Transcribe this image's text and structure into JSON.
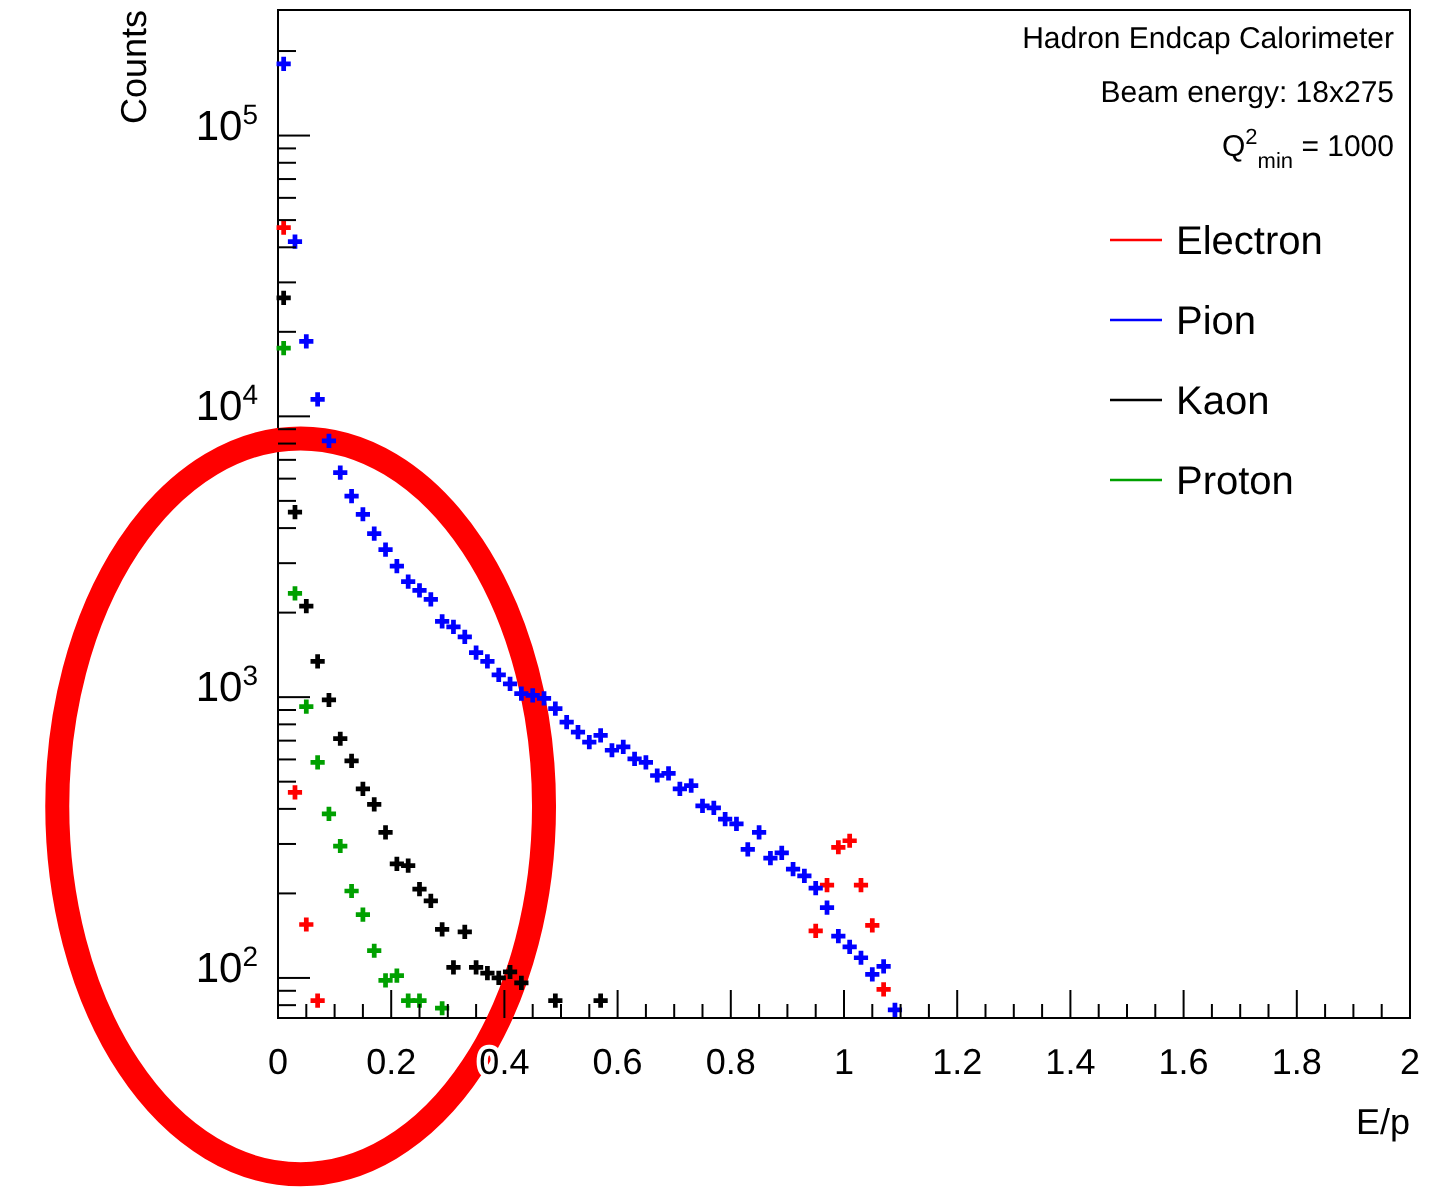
{
  "chart_data": {
    "type": "scatter",
    "xlabel": "E/p",
    "ylabel": "Counts",
    "log": "y",
    "xlim": [
      0,
      2
    ],
    "ylim": [
      72,
      280000
    ],
    "marker": "cross",
    "xticks": [
      0,
      {
        "value": 0.05,
        "label": null
      },
      {
        "value": 0.1,
        "label": null
      },
      {
        "value": 0.15,
        "label": null
      },
      0.2,
      {
        "value": 0.25,
        "label": null
      },
      {
        "value": 0.3,
        "label": null
      },
      {
        "value": 0.35,
        "label": null
      },
      0.4,
      {
        "value": 0.45,
        "label": null
      },
      {
        "value": 0.5,
        "label": null
      },
      {
        "value": 0.55,
        "label": null
      },
      0.6,
      {
        "value": 0.65,
        "label": null
      },
      {
        "value": 0.7,
        "label": null
      },
      {
        "value": 0.75,
        "label": null
      },
      0.8,
      {
        "value": 0.85,
        "label": null
      },
      {
        "value": 0.9,
        "label": null
      },
      {
        "value": 0.95,
        "label": null
      },
      1,
      {
        "value": 1.05,
        "label": null
      },
      {
        "value": 1.1,
        "label": null
      },
      {
        "value": 1.15,
        "label": null
      },
      1.2,
      {
        "value": 1.25,
        "label": null
      },
      {
        "value": 1.3,
        "label": null
      },
      {
        "value": 1.35,
        "label": null
      },
      1.4,
      {
        "value": 1.45,
        "label": null
      },
      {
        "value": 1.5,
        "label": null
      },
      {
        "value": 1.55,
        "label": null
      },
      1.6,
      {
        "value": 1.65,
        "label": null
      },
      {
        "value": 1.7,
        "label": null
      },
      {
        "value": 1.75,
        "label": null
      },
      1.8,
      {
        "value": 1.85,
        "label": null
      },
      {
        "value": 1.9,
        "label": null
      },
      {
        "value": 1.95,
        "label": null
      },
      2
    ],
    "yticks": [
      {
        "value": 80,
        "label": null
      },
      {
        "value": 90,
        "label": null
      },
      {
        "value": 100,
        "label": "10$^{2}$"
      },
      {
        "value": 200,
        "label": null
      },
      {
        "value": 300,
        "label": null
      },
      {
        "value": 400,
        "label": null
      },
      {
        "value": 500,
        "label": null
      },
      {
        "value": 600,
        "label": null
      },
      {
        "value": 700,
        "label": null
      },
      {
        "value": 800,
        "label": null
      },
      {
        "value": 900,
        "label": null
      },
      {
        "value": 1000,
        "label": "10$^{3}$"
      },
      {
        "value": 2000,
        "label": null
      },
      {
        "value": 3000,
        "label": null
      },
      {
        "value": 4000,
        "label": null
      },
      {
        "value": 5000,
        "label": null
      },
      {
        "value": 6000,
        "label": null
      },
      {
        "value": 7000,
        "label": null
      },
      {
        "value": 8000,
        "label": null
      },
      {
        "value": 9000,
        "label": null
      },
      {
        "value": 10000,
        "label": "10$^{4}$"
      },
      {
        "value": 20000,
        "label": null
      },
      {
        "value": 30000,
        "label": null
      },
      {
        "value": 40000,
        "label": null
      },
      {
        "value": 50000,
        "label": null
      },
      {
        "value": 60000,
        "label": null
      },
      {
        "value": 70000,
        "label": null
      },
      {
        "value": 80000,
        "label": null
      },
      {
        "value": 90000,
        "label": null
      },
      {
        "value": 100000,
        "label": "10$^{5}$"
      },
      {
        "value": 200000,
        "label": null
      }
    ],
    "annotations": [
      "Hadron Endcap Calorimeter",
      "Beam energy: 18x275",
      "Q$^{2}$$_{min}$ = 1000"
    ],
    "legend": "top right",
    "series": [
      {
        "name": "Electron",
        "color": "#ff0000",
        "x": [
          0.01,
          0.03,
          0.05,
          0.07,
          0.95,
          0.97,
          0.99,
          1.01,
          1.03,
          1.05,
          1.07
        ],
        "values": [
          47000,
          458,
          155,
          83,
          147,
          214,
          292,
          308,
          214,
          154,
          91
        ]
      },
      {
        "name": "Pion",
        "color": "#0000ff",
        "x": [
          0.01,
          0.03,
          0.05,
          0.07,
          0.09,
          0.11,
          0.13,
          0.15,
          0.17,
          0.19,
          0.21,
          0.23,
          0.25,
          0.27,
          0.29,
          0.31,
          0.33,
          0.35,
          0.37,
          0.39,
          0.41,
          0.43,
          0.45,
          0.47,
          0.49,
          0.51,
          0.53,
          0.55,
          0.57,
          0.59,
          0.61,
          0.63,
          0.65,
          0.67,
          0.69,
          0.71,
          0.73,
          0.75,
          0.77,
          0.79,
          0.81,
          0.83,
          0.85,
          0.87,
          0.89,
          0.91,
          0.93,
          0.95,
          0.97,
          0.99,
          1.01,
          1.03,
          1.05,
          1.07,
          1.09
        ],
        "values": [
          180000,
          41900,
          18500,
          11500,
          8180,
          6300,
          5200,
          4480,
          3820,
          3350,
          2930,
          2580,
          2400,
          2230,
          1860,
          1780,
          1640,
          1440,
          1340,
          1200,
          1115,
          1030,
          1015,
          990,
          910,
          815,
          751,
          692,
          731,
          647,
          665,
          603,
          586,
          526,
          535,
          471,
          484,
          410,
          403,
          368,
          354,
          287,
          330,
          267,
          279,
          244,
          231,
          209,
          178,
          141,
          129,
          118,
          103,
          110,
          77
        ]
      },
      {
        "name": "Kaon",
        "color": "#000000",
        "x": [
          0.01,
          0.03,
          0.05,
          0.07,
          0.09,
          0.11,
          0.13,
          0.15,
          0.17,
          0.19,
          0.21,
          0.23,
          0.25,
          0.27,
          0.29,
          0.31,
          0.33,
          0.35,
          0.37,
          0.39,
          0.41,
          0.43,
          0.49,
          0.57
        ],
        "values": [
          26400,
          4560,
          2110,
          1340,
          977,
          711,
          593,
          471,
          415,
          330,
          255,
          251,
          207,
          188,
          149,
          109,
          146,
          109,
          104,
          100,
          105,
          96,
          83,
          83
        ]
      },
      {
        "name": "Proton",
        "color": "#00a000",
        "x": [
          0.01,
          0.03,
          0.05,
          0.07,
          0.09,
          0.11,
          0.13,
          0.15,
          0.17,
          0.19,
          0.21,
          0.23,
          0.25,
          0.29
        ],
        "values": [
          17500,
          2340,
          925,
          586,
          384,
          295,
          204,
          168,
          125,
          98,
          102,
          83,
          83,
          78
        ]
      }
    ]
  }
}
